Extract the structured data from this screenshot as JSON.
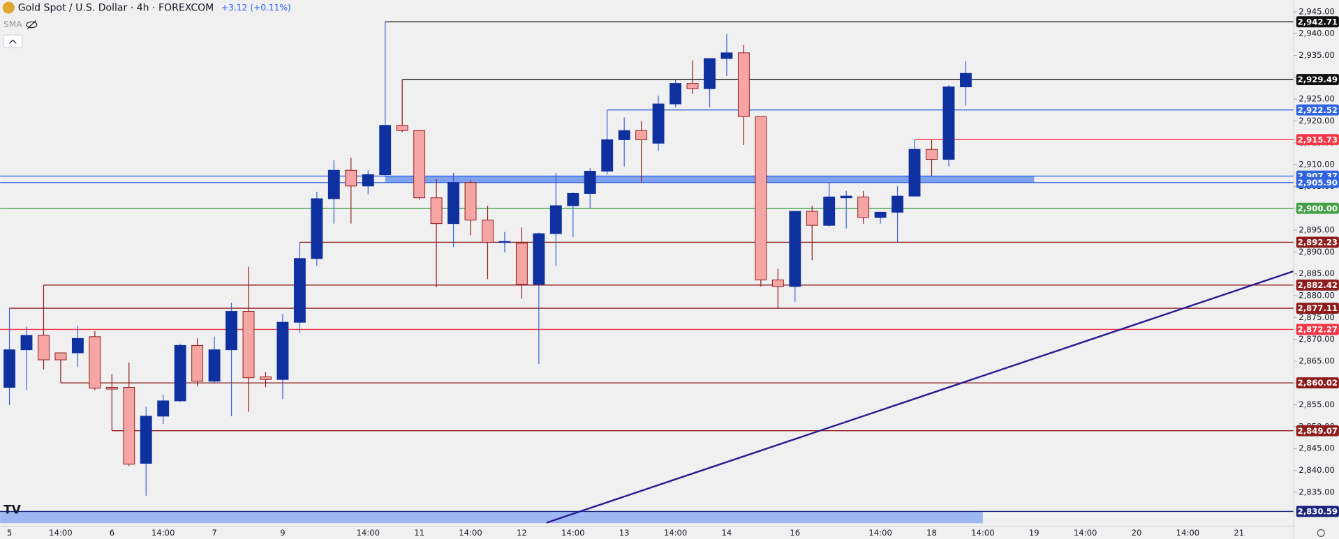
{
  "chart_data": {
    "type": "candlestick",
    "title": "Gold Spot / U.S. Dollar · 4h · FOREXCOM",
    "change": "+3.12 (+0.11%)",
    "indicator": "SMA",
    "up_color": "#0f31a0",
    "up_wick_color": "#3d63d6",
    "down_color": "#f6a5a5",
    "down_edge_color": "#8e1c1c",
    "categories": [
      "5",
      null,
      null,
      "14:00",
      null,
      null,
      "6",
      null,
      null,
      "14:00",
      null,
      null,
      "7",
      null,
      null,
      null,
      "9",
      null,
      null,
      null,
      null,
      "14:00",
      null,
      null,
      "11",
      null,
      null,
      "14:00",
      null,
      null,
      "12",
      null,
      null,
      "14:00",
      null,
      null,
      "13",
      null,
      null,
      "14:00",
      null,
      null,
      "14",
      null,
      null,
      null,
      "16",
      null,
      null,
      null,
      null,
      "14:00",
      null,
      null,
      "18",
      null,
      null,
      "14:00",
      null,
      null,
      "19",
      null,
      null,
      "14:00",
      null,
      null,
      "20",
      null,
      null,
      "14:00",
      null,
      null,
      "21"
    ],
    "open": [
      2859.0,
      2867.6,
      2870.9,
      2866.9,
      2866.9,
      2870.6,
      2859.0,
      2859.0,
      2841.6,
      2852.4,
      2855.9,
      2868.6,
      2860.4,
      2867.6,
      2876.4,
      2861.4,
      2860.8,
      2873.9,
      2888.5,
      2902.2,
      2908.7,
      2905.1,
      2907.7,
      2919.0,
      2917.8,
      2902.4,
      2896.5,
      2905.9,
      2897.3,
      2892.2,
      2892.0,
      2882.6,
      2894.2,
      2900.6,
      2903.4,
      2908.5,
      2915.7,
      2917.8,
      2914.9,
      2923.9,
      2928.6,
      2927.4,
      2934.3,
      2935.6,
      2921.0,
      2883.6,
      2882.1,
      2899.3,
      2896.1,
      2902.4,
      2902.6,
      2897.9,
      2899.1,
      2902.8,
      2913.5,
      2911.2,
      2927.8,
      null,
      null,
      null,
      null,
      null,
      null,
      null,
      null,
      null,
      null,
      null,
      null,
      null,
      null,
      null,
      null
    ],
    "high": [
      2877.1,
      2872.9,
      2882.4,
      2866.9,
      2873.1,
      2871.9,
      2862.1,
      2864.7,
      2854.6,
      2857.3,
      2869.0,
      2870.2,
      2870.6,
      2878.4,
      2886.6,
      2862.5,
      2875.8,
      2892.2,
      2903.8,
      2911.0,
      2911.6,
      2908.7,
      2942.7,
      2929.5,
      2917.8,
      2906.7,
      2908.1,
      2906.5,
      2900.6,
      2894.6,
      2895.6,
      2894.4,
      2908.1,
      2903.6,
      2909.2,
      2922.5,
      2920.8,
      2920.0,
      2925.8,
      2929.4,
      2933.9,
      2934.3,
      2939.9,
      2937.4,
      2921.0,
      2886.2,
      2899.3,
      2900.6,
      2905.9,
      2904.0,
      2904.0,
      2899.1,
      2905.1,
      2915.7,
      2915.7,
      2928.2,
      2933.7,
      null,
      null,
      null,
      null,
      null,
      null,
      null,
      null,
      null,
      null,
      null,
      null,
      null,
      null,
      null,
      null
    ],
    "low": [
      2854.9,
      2858.4,
      2863.1,
      2860.0,
      2863.7,
      2858.4,
      2849.1,
      2841.0,
      2834.2,
      2850.6,
      2855.7,
      2859.2,
      2859.8,
      2852.4,
      2853.4,
      2859.0,
      2856.3,
      2871.5,
      2886.8,
      2896.5,
      2896.5,
      2903.2,
      2907.3,
      2917.4,
      2902.0,
      2881.9,
      2891.1,
      2893.8,
      2883.8,
      2889.9,
      2879.3,
      2864.3,
      2886.8,
      2893.4,
      2900.0,
      2907.7,
      2909.6,
      2905.9,
      2913.2,
      2923.1,
      2926.2,
      2923.1,
      2930.3,
      2914.5,
      2882.1,
      2877.0,
      2878.6,
      2888.1,
      2895.8,
      2895.4,
      2896.5,
      2896.5,
      2892.2,
      2902.8,
      2907.3,
      2909.6,
      2923.5,
      null,
      null,
      null,
      null,
      null,
      null,
      null,
      null,
      null,
      null,
      null,
      null,
      null,
      null,
      null,
      null
    ],
    "close": [
      2867.6,
      2870.9,
      2865.3,
      2865.3,
      2870.2,
      2858.8,
      2858.6,
      2841.4,
      2852.4,
      2855.9,
      2868.6,
      2860.4,
      2867.6,
      2876.4,
      2861.2,
      2860.8,
      2873.9,
      2888.5,
      2902.2,
      2908.7,
      2905.1,
      2907.7,
      2919.0,
      2917.8,
      2902.4,
      2896.5,
      2905.9,
      2897.3,
      2892.2,
      2892.4,
      2882.6,
      2894.2,
      2900.6,
      2903.4,
      2908.5,
      2915.7,
      2917.8,
      2915.7,
      2923.9,
      2928.6,
      2927.4,
      2934.3,
      2935.6,
      2921.0,
      2883.6,
      2882.1,
      2899.3,
      2896.1,
      2902.6,
      2902.8,
      2897.9,
      2899.1,
      2902.8,
      2913.5,
      2911.2,
      2927.8,
      2930.9,
      null,
      null,
      null,
      null,
      null,
      null,
      null,
      null,
      null,
      null,
      null,
      null,
      null,
      null,
      null,
      null
    ],
    "ylim": [
      2827.2,
      2947.7
    ],
    "yticks": [
      {
        "value": 2835,
        "label": "2,835.00"
      },
      {
        "value": 2840,
        "label": "2,840.00"
      },
      {
        "value": 2845,
        "label": "2,845.00"
      },
      {
        "value": 2850,
        "label": "2,850.00"
      },
      {
        "value": 2855,
        "label": "2,855.00"
      },
      {
        "value": 2860,
        "label": "2,860.00"
      },
      {
        "value": 2865,
        "label": "2,865.00"
      },
      {
        "value": 2870,
        "label": "2,870.00"
      },
      {
        "value": 2875,
        "label": "2,875.00"
      },
      {
        "value": 2880,
        "label": "2,880.00"
      },
      {
        "value": 2885,
        "label": "2,885.00"
      },
      {
        "value": 2890,
        "label": "2,890.00"
      },
      {
        "value": 2895,
        "label": "2,895.00"
      },
      {
        "value": 2900,
        "label": "2,900.00"
      },
      {
        "value": 2905,
        "label": "2,905.00"
      },
      {
        "value": 2910,
        "label": "2,910.00"
      },
      {
        "value": 2915,
        "label": "2,915.00"
      },
      {
        "value": 2920,
        "label": "2,920.00"
      },
      {
        "value": 2925,
        "label": "2,925.00"
      },
      {
        "value": 2930,
        "label": "2,930.00"
      },
      {
        "value": 2935,
        "label": "2,935.00"
      },
      {
        "value": 2940,
        "label": "2,940.00"
      },
      {
        "value": 2945,
        "label": "2,945.00"
      }
    ],
    "zones": [
      {
        "low": 2905.9,
        "high": 2907.37,
        "start": 22,
        "end": 60,
        "color": "#7fa2f0"
      },
      {
        "low": 2827.9,
        "high": 2830.6,
        "start": 0,
        "end": 57,
        "color": "#9db7f3"
      }
    ],
    "levels": [
      {
        "value": 2942.71,
        "label": "2,942.71",
        "color": "#111111",
        "start": 22
      },
      {
        "value": 2929.49,
        "label": "2,929.49",
        "color": "#111111",
        "start": 23
      },
      {
        "value": 2922.52,
        "label": "2,922.52",
        "color": "#2f63e0",
        "start": 35
      },
      {
        "value": 2915.73,
        "label": "2,915.73",
        "color": "#f23645",
        "start": 53
      },
      {
        "value": 2907.37,
        "label": "2,907.37",
        "color": "#2f63e0"
      },
      {
        "value": 2905.9,
        "label": "2,905.90",
        "color": "#2f63e0"
      },
      {
        "value": 2900.0,
        "label": "2,900.00",
        "color": "#43a047"
      },
      {
        "value": 2892.23,
        "label": "2,892.23",
        "color": "#8e1c1c",
        "start": 17
      },
      {
        "value": 2882.42,
        "label": "2,882.42",
        "color": "#8e1c1c",
        "start": 2
      },
      {
        "value": 2877.11,
        "label": "2,877.11",
        "color": "#8e1c1c",
        "start": 0
      },
      {
        "value": 2872.27,
        "label": "2,872.27",
        "color": "#f23645"
      },
      {
        "value": 2860.02,
        "label": "2,860.02",
        "color": "#8e1c1c",
        "start": 3
      },
      {
        "value": 2849.07,
        "label": "2,849.07",
        "color": "#8e1c1c",
        "start": 6
      },
      {
        "value": 2830.59,
        "label": "2,830.59",
        "color": "#1a237e"
      }
    ],
    "trendline": {
      "x": [
        31.45,
        75.35
      ],
      "y": [
        2828.0,
        2885.8
      ],
      "color": "#2a1b8f"
    }
  }
}
